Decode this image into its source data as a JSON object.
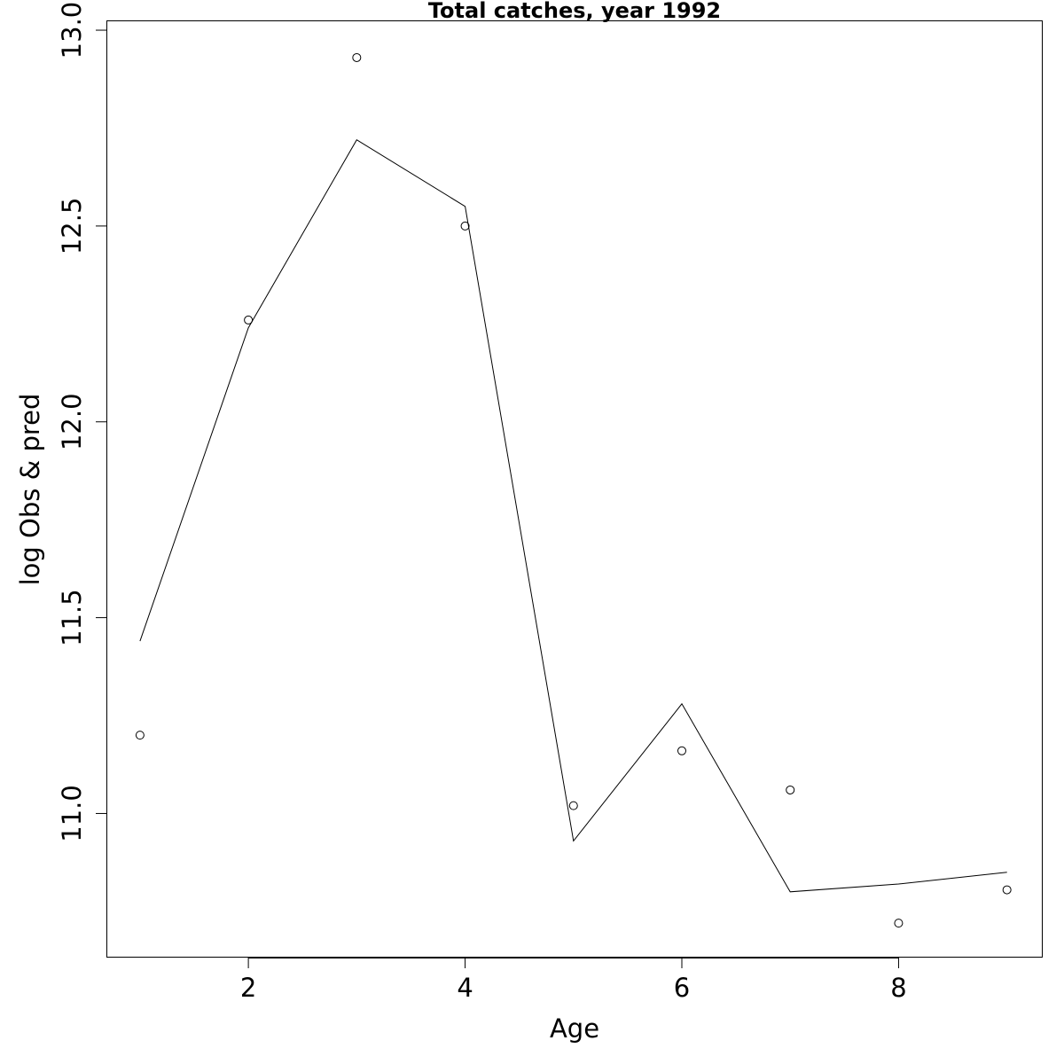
{
  "chart_data": {
    "type": "line",
    "title": "Total catches, year 1992",
    "xlabel": "Age",
    "ylabel": "log Obs & pred",
    "xlim": [
      0.69,
      9.33
    ],
    "ylim": [
      10.632,
      13.025
    ],
    "x_ticks": [
      2,
      4,
      6,
      8
    ],
    "x_tick_labels": [
      "2",
      "4",
      "6",
      "8"
    ],
    "y_ticks": [
      11.0,
      11.5,
      12.0,
      12.5,
      13.0
    ],
    "y_tick_labels": [
      "11.0",
      "11.5",
      "12.0",
      "12.5",
      "13.0"
    ],
    "grid": false,
    "legend": "none",
    "series": [
      {
        "style": "line",
        "x": [
          1,
          2,
          3,
          4,
          5,
          6,
          7,
          8,
          9
        ],
        "values": [
          11.44,
          12.24,
          12.72,
          12.55,
          10.93,
          11.28,
          10.8,
          10.82,
          10.85
        ]
      },
      {
        "style": "points",
        "x": [
          1,
          2,
          3,
          4,
          5,
          6,
          7,
          8,
          9
        ],
        "values": [
          11.2,
          12.26,
          12.93,
          12.5,
          11.02,
          11.16,
          11.06,
          10.72,
          10.805
        ]
      }
    ]
  }
}
